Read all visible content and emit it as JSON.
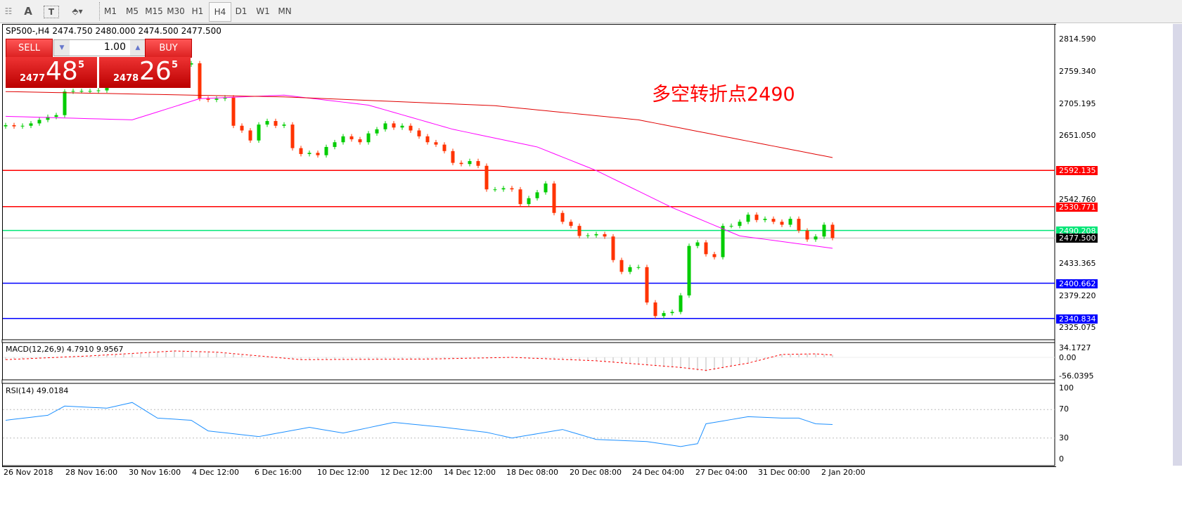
{
  "toolbar": {
    "tools": [
      "A",
      "T"
    ],
    "timeframes": [
      "M1",
      "M5",
      "M15",
      "M30",
      "H1",
      "H4",
      "D1",
      "W1",
      "MN"
    ],
    "active": "H4"
  },
  "title": "SP500-,H4  2474.750 2480.000 2474.500 2477.500",
  "trade": {
    "sell": "SELL",
    "buy": "BUY",
    "volume": "1.00",
    "sell_prefix": "2477",
    "sell_big": "48",
    "sell_frac": "5",
    "buy_prefix": "2478",
    "buy_big": "26",
    "buy_frac": "5"
  },
  "annotation": "多空转折点2490",
  "price_axis": [
    "2814.590",
    "2759.340",
    "2705.195",
    "2651.050",
    "2542.760",
    "2433.365",
    "2379.220",
    "2325.075"
  ],
  "levels": [
    {
      "value": "2592.135",
      "color": "#ff0000"
    },
    {
      "value": "2530.771",
      "color": "#ff0000"
    },
    {
      "value": "2490.208",
      "color": "#00e676"
    },
    {
      "value": "2400.662",
      "color": "#0000ff"
    },
    {
      "value": "2340.834",
      "color": "#0000ff"
    }
  ],
  "current_price": "2477.500",
  "macd": {
    "label": "MACD(12,26,9) 4.7910 9.9567",
    "axis": [
      "34.1727",
      "0.00",
      "-56.0395"
    ]
  },
  "rsi": {
    "label": "RSI(14) 49.0184",
    "axis": [
      "100",
      "70",
      "30",
      "0"
    ]
  },
  "dates": [
    "26 Nov 2018",
    "28 Nov 16:00",
    "30 Nov 16:00",
    "4 Dec 12:00",
    "6 Dec 16:00",
    "10 Dec 12:00",
    "12 Dec 12:00",
    "14 Dec 12:00",
    "18 Dec 08:00",
    "20 Dec 08:00",
    "24 Dec 04:00",
    "27 Dec 04:00",
    "31 Dec 00:00",
    "2 Jan 20:00"
  ],
  "colors": {
    "bull": "#00cc00",
    "bear": "#ff3300",
    "ma_fast": "#ff00ff",
    "ma_slow": "#e00000",
    "rsi": "#1e90ff",
    "macd_signal": "#ff0000"
  },
  "chart_data": {
    "type": "candlestick",
    "closes": [
      2669,
      2667,
      2668,
      2672,
      2678,
      2683,
      2686,
      2726,
      2727,
      2727,
      2727,
      2728,
      2740,
      2750,
      2755,
      2760,
      2762,
      2765,
      2768,
      2770,
      2770,
      2772,
      2774,
      2714,
      2712,
      2714,
      2716,
      2668,
      2660,
      2643,
      2670,
      2676,
      2668,
      2670,
      2630,
      2620,
      2622,
      2618,
      2632,
      2640,
      2650,
      2645,
      2640,
      2655,
      2662,
      2672,
      2665,
      2668,
      2660,
      2650,
      2640,
      2636,
      2625,
      2605,
      2603,
      2608,
      2600,
      2560,
      2560,
      2562,
      2560,
      2535,
      2545,
      2555,
      2570,
      2520,
      2505,
      2498,
      2481,
      2482,
      2484,
      2480,
      2440,
      2420,
      2428,
      2428,
      2368,
      2345,
      2350,
      2352,
      2380,
      2464,
      2470,
      2450,
      2445,
      2498,
      2498,
      2505,
      2517,
      2508,
      2510,
      2505,
      2500,
      2510,
      2490,
      2475,
      2480,
      2500,
      2477.5
    ],
    "ma_fast": [
      [
        0,
        2684
      ],
      [
        15,
        2678
      ],
      [
        23,
        2714
      ],
      [
        33,
        2720
      ],
      [
        43,
        2703
      ],
      [
        53,
        2662
      ],
      [
        63,
        2632
      ],
      [
        70,
        2592
      ],
      [
        79,
        2529
      ],
      [
        87,
        2481
      ],
      [
        98,
        2460
      ]
    ],
    "ma_slow": [
      [
        0,
        2726
      ],
      [
        33,
        2717
      ],
      [
        58,
        2702
      ],
      [
        75,
        2678
      ],
      [
        98,
        2614
      ]
    ],
    "macd_signal": [
      [
        0,
        -8
      ],
      [
        10,
        5
      ],
      [
        20,
        22
      ],
      [
        25,
        18
      ],
      [
        35,
        -8
      ],
      [
        50,
        -6
      ],
      [
        60,
        0
      ],
      [
        70,
        -12
      ],
      [
        80,
        -35
      ],
      [
        83,
        -45
      ],
      [
        88,
        -20
      ],
      [
        92,
        10
      ],
      [
        96,
        12
      ],
      [
        98,
        8
      ]
    ],
    "rsi": [
      [
        0,
        55
      ],
      [
        5,
        62
      ],
      [
        7,
        75
      ],
      [
        12,
        72
      ],
      [
        15,
        80
      ],
      [
        18,
        58
      ],
      [
        22,
        55
      ],
      [
        24,
        40
      ],
      [
        30,
        32
      ],
      [
        36,
        45
      ],
      [
        40,
        37
      ],
      [
        46,
        52
      ],
      [
        52,
        45
      ],
      [
        57,
        38
      ],
      [
        60,
        30
      ],
      [
        66,
        42
      ],
      [
        70,
        28
      ],
      [
        76,
        25
      ],
      [
        80,
        18
      ],
      [
        82,
        22
      ],
      [
        83,
        50
      ],
      [
        88,
        60
      ],
      [
        92,
        58
      ],
      [
        94,
        58
      ],
      [
        96,
        50
      ],
      [
        98,
        49
      ]
    ]
  }
}
